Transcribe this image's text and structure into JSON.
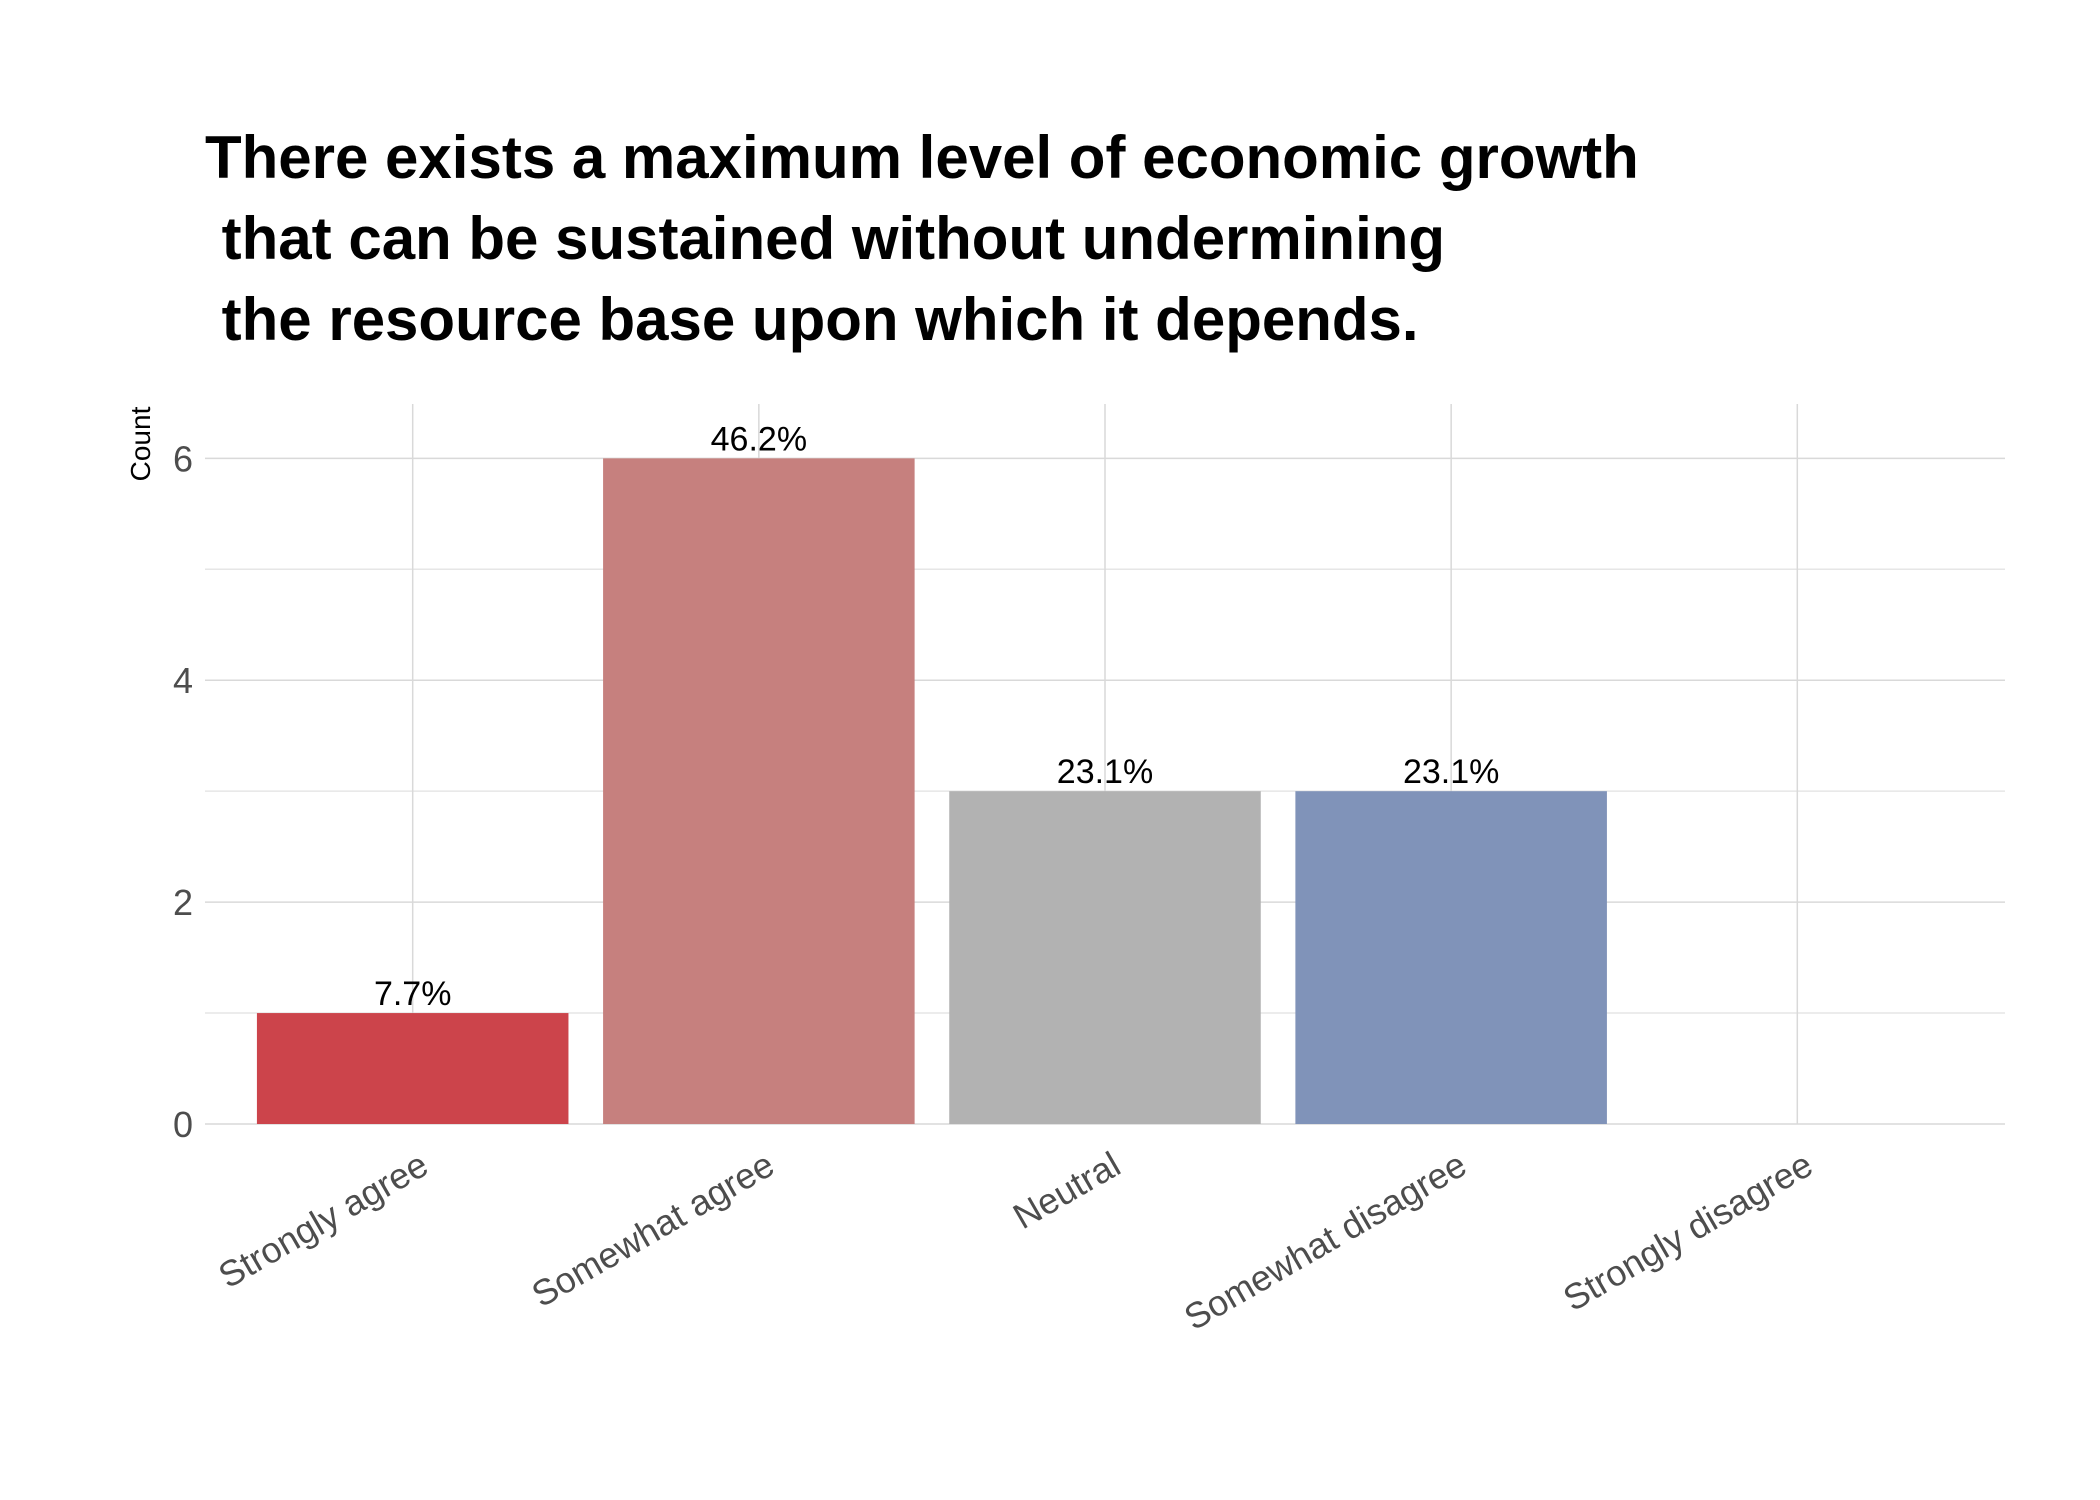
{
  "chart_data": {
    "type": "bar",
    "title": [
      "There exists a maximum level of economic growth",
      " that can be sustained without undermining",
      " the resource base upon which it depends."
    ],
    "y_label": "Count",
    "categories": [
      "Strongly agree",
      "Somewhat agree",
      "Neutral",
      "Somewhat disagree",
      "Strongly disagree"
    ],
    "values": [
      1,
      6,
      3,
      3,
      0
    ],
    "value_labels": [
      "7.7%",
      "46.2%",
      "23.1%",
      "23.1%",
      null
    ],
    "colors": [
      "#cc444b",
      "#c6807e",
      "#b2b2b2",
      "#8093b9",
      "#3f60a6"
    ],
    "ylim": [
      0,
      6.49
    ],
    "yticks": [
      0,
      2,
      4,
      6
    ],
    "minor_yticks": [
      1,
      3,
      5
    ],
    "grid": true
  }
}
